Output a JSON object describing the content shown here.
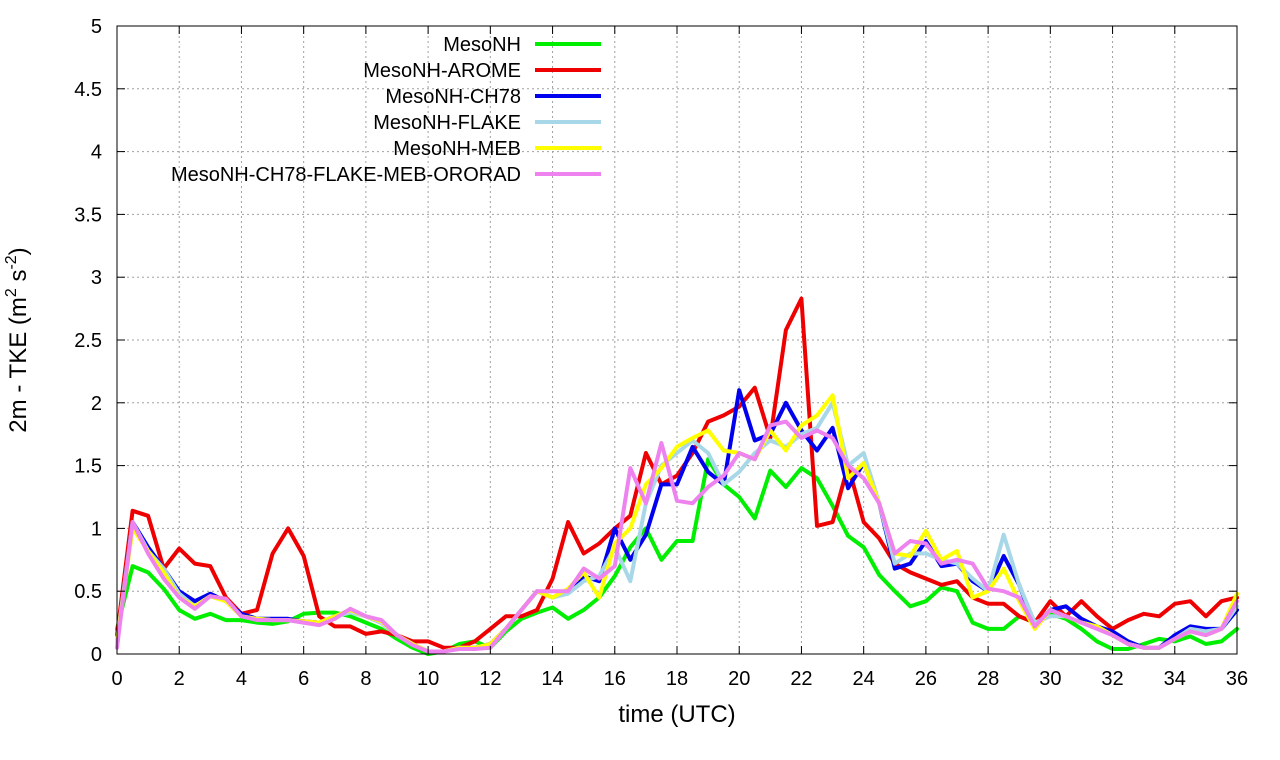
{
  "chart_data": {
    "type": "line",
    "title": "",
    "xlabel": "time (UTC)",
    "ylabel_main": "2m - TKE (m",
    "ylabel_exp1": "2",
    "ylabel_mid": " s",
    "ylabel_exp2": "-2",
    "ylabel_end": ")",
    "xlim": [
      0,
      36
    ],
    "ylim": [
      0,
      5
    ],
    "xticks": [
      0,
      2,
      4,
      6,
      8,
      10,
      12,
      14,
      16,
      18,
      20,
      22,
      24,
      26,
      28,
      30,
      32,
      34,
      36
    ],
    "yticks": [
      0,
      0.5,
      1,
      1.5,
      2,
      2.5,
      3,
      3.5,
      4,
      4.5,
      5
    ],
    "ytick_labels": [
      "0",
      "0.5",
      "1",
      "1.5",
      "2",
      "2.5",
      "3",
      "3.5",
      "4",
      "4.5",
      "5"
    ],
    "grid": true,
    "legend_position": "top-left",
    "x": [
      0,
      0.5,
      1,
      1.5,
      2,
      2.5,
      3,
      3.5,
      4,
      4.5,
      5,
      5.5,
      6,
      6.5,
      7,
      7.5,
      8,
      8.5,
      9,
      9.5,
      10,
      10.5,
      11,
      11.5,
      12,
      12.5,
      13,
      13.5,
      14,
      14.5,
      15,
      15.5,
      16,
      16.5,
      17,
      17.5,
      18,
      18.5,
      19,
      19.5,
      20,
      20.5,
      21,
      21.5,
      22,
      22.5,
      23,
      23.5,
      24,
      24.5,
      25,
      25.5,
      26,
      26.5,
      27,
      27.5,
      28,
      28.5,
      29,
      29.5,
      30,
      30.5,
      31,
      31.5,
      32,
      32.5,
      33,
      33.5,
      34,
      34.5,
      35,
      35.5,
      36
    ],
    "series": [
      {
        "name": "MesoNH",
        "color": "#00ee00",
        "values": [
          0.2,
          0.7,
          0.65,
          0.52,
          0.35,
          0.28,
          0.32,
          0.27,
          0.27,
          0.25,
          0.24,
          0.26,
          0.32,
          0.33,
          0.33,
          0.3,
          0.25,
          0.2,
          0.12,
          0.05,
          0.0,
          0.02,
          0.08,
          0.1,
          0.05,
          0.18,
          0.28,
          0.33,
          0.37,
          0.28,
          0.35,
          0.45,
          0.62,
          0.85,
          1.0,
          0.75,
          0.9,
          0.9,
          1.55,
          1.35,
          1.25,
          1.08,
          1.46,
          1.33,
          1.48,
          1.4,
          1.18,
          0.94,
          0.85,
          0.63,
          0.5,
          0.38,
          0.42,
          0.53,
          0.5,
          0.25,
          0.2,
          0.2,
          0.3,
          0.25,
          0.32,
          0.28,
          0.2,
          0.1,
          0.04,
          0.04,
          0.08,
          0.12,
          0.1,
          0.14,
          0.08,
          0.1,
          0.2
        ]
      },
      {
        "name": "MesoNH-AROME",
        "color": "#ee0000",
        "values": [
          0.15,
          1.14,
          1.1,
          0.68,
          0.84,
          0.72,
          0.7,
          0.45,
          0.32,
          0.35,
          0.8,
          1.0,
          0.78,
          0.3,
          0.22,
          0.22,
          0.16,
          0.18,
          0.15,
          0.1,
          0.1,
          0.05,
          0.05,
          0.1,
          0.2,
          0.3,
          0.3,
          0.35,
          0.6,
          1.05,
          0.8,
          0.88,
          1.0,
          1.1,
          1.6,
          1.35,
          1.42,
          1.6,
          1.85,
          1.9,
          1.97,
          2.12,
          1.72,
          2.58,
          2.83,
          1.02,
          1.05,
          1.5,
          1.05,
          0.92,
          0.72,
          0.65,
          0.6,
          0.55,
          0.58,
          0.45,
          0.4,
          0.4,
          0.3,
          0.25,
          0.42,
          0.3,
          0.42,
          0.3,
          0.2,
          0.27,
          0.32,
          0.3,
          0.4,
          0.42,
          0.3,
          0.42,
          0.45
        ]
      },
      {
        "name": "MesoNH-CH78",
        "color": "#0000ee",
        "values": [
          0.1,
          1.05,
          0.85,
          0.68,
          0.5,
          0.42,
          0.48,
          0.42,
          0.32,
          0.28,
          0.28,
          0.28,
          0.26,
          0.25,
          0.3,
          0.35,
          0.3,
          0.25,
          0.15,
          0.08,
          0.02,
          0.02,
          0.05,
          0.05,
          0.08,
          0.2,
          0.35,
          0.5,
          0.45,
          0.5,
          0.62,
          0.58,
          1.0,
          0.75,
          0.95,
          1.35,
          1.35,
          1.65,
          1.45,
          1.35,
          2.1,
          1.7,
          1.75,
          2.0,
          1.78,
          1.62,
          1.8,
          1.32,
          1.52,
          1.2,
          0.68,
          0.72,
          0.9,
          0.7,
          0.72,
          0.58,
          0.5,
          0.78,
          0.55,
          0.22,
          0.35,
          0.38,
          0.28,
          0.22,
          0.18,
          0.1,
          0.05,
          0.05,
          0.15,
          0.22,
          0.2,
          0.2,
          0.35
        ]
      },
      {
        "name": "MesoNH-FLAKE",
        "color": "#a8d8e8",
        "values": [
          0.1,
          1.05,
          0.82,
          0.68,
          0.48,
          0.38,
          0.46,
          0.42,
          0.3,
          0.28,
          0.27,
          0.27,
          0.25,
          0.25,
          0.3,
          0.33,
          0.3,
          0.25,
          0.15,
          0.08,
          0.02,
          0.02,
          0.05,
          0.05,
          0.05,
          0.2,
          0.35,
          0.5,
          0.45,
          0.48,
          0.58,
          0.62,
          0.85,
          0.58,
          1.2,
          1.5,
          1.6,
          1.7,
          1.6,
          1.35,
          1.45,
          1.6,
          1.7,
          1.65,
          1.75,
          1.8,
          2.0,
          1.5,
          1.6,
          1.2,
          0.72,
          0.8,
          0.8,
          0.75,
          0.72,
          0.6,
          0.5,
          0.95,
          0.55,
          0.25,
          0.3,
          0.3,
          0.25,
          0.22,
          0.15,
          0.08,
          0.05,
          0.05,
          0.12,
          0.2,
          0.18,
          0.2,
          0.38
        ]
      },
      {
        "name": "MesoNH-MEB",
        "color": "#ffff00",
        "values": [
          0.1,
          1.0,
          0.82,
          0.65,
          0.45,
          0.38,
          0.46,
          0.42,
          0.3,
          0.28,
          0.27,
          0.27,
          0.26,
          0.25,
          0.3,
          0.35,
          0.3,
          0.26,
          0.15,
          0.08,
          0.02,
          0.02,
          0.05,
          0.05,
          0.08,
          0.2,
          0.35,
          0.5,
          0.45,
          0.52,
          0.65,
          0.45,
          0.88,
          1.0,
          1.35,
          1.48,
          1.65,
          1.72,
          1.78,
          1.62,
          1.6,
          1.55,
          1.78,
          1.62,
          1.82,
          1.9,
          2.06,
          1.4,
          1.52,
          1.2,
          0.8,
          0.78,
          0.98,
          0.75,
          0.82,
          0.45,
          0.5,
          0.68,
          0.42,
          0.2,
          0.35,
          0.3,
          0.25,
          0.22,
          0.15,
          0.08,
          0.05,
          0.05,
          0.12,
          0.18,
          0.15,
          0.2,
          0.48
        ]
      },
      {
        "name": "MesoNH-CH78-FLAKE-MEB-ORORAD",
        "color": "#ee82ee",
        "values": [
          0.05,
          1.05,
          0.8,
          0.6,
          0.45,
          0.36,
          0.46,
          0.44,
          0.3,
          0.27,
          0.27,
          0.27,
          0.25,
          0.23,
          0.28,
          0.36,
          0.3,
          0.27,
          0.15,
          0.07,
          0.02,
          0.02,
          0.04,
          0.04,
          0.05,
          0.2,
          0.35,
          0.5,
          0.5,
          0.5,
          0.68,
          0.6,
          0.7,
          1.48,
          1.2,
          1.68,
          1.22,
          1.2,
          1.33,
          1.42,
          1.6,
          1.55,
          1.82,
          1.85,
          1.72,
          1.78,
          1.72,
          1.5,
          1.4,
          1.2,
          0.8,
          0.9,
          0.88,
          0.72,
          0.75,
          0.72,
          0.52,
          0.5,
          0.45,
          0.22,
          0.35,
          0.3,
          0.25,
          0.2,
          0.15,
          0.08,
          0.05,
          0.05,
          0.12,
          0.18,
          0.15,
          0.2,
          0.42
        ]
      }
    ]
  }
}
